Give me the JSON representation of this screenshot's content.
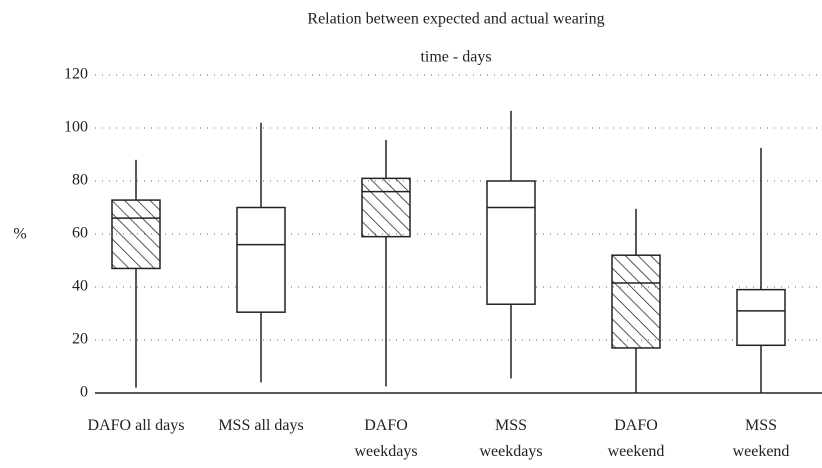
{
  "chart_data": {
    "type": "box",
    "title": [
      "Relation between expected and actual wearing",
      "time - days"
    ],
    "y_label": "%",
    "categories": [
      "DAFO all days",
      "MSS all days",
      "DAFO\nweekdays",
      "MSS\nweekdays",
      "DAFO\nweekend",
      "MSS\nweekend"
    ],
    "min": [
      2,
      4,
      2.5,
      5.5,
      0,
      0
    ],
    "q1": [
      47,
      30.5,
      59,
      33.5,
      17,
      18
    ],
    "median": [
      66,
      56,
      76,
      70,
      41.5,
      31
    ],
    "q3": [
      72.8,
      70,
      81,
      80,
      52,
      39
    ],
    "max": [
      88,
      102,
      95.5,
      106.5,
      69.5,
      92.5
    ],
    "hatched": [
      true,
      false,
      true,
      false,
      true,
      false
    ],
    "color": "#222222",
    "ylim": [
      0,
      120
    ],
    "yticks": [
      0,
      20,
      40,
      60,
      80,
      100,
      120
    ],
    "grid": true
  }
}
